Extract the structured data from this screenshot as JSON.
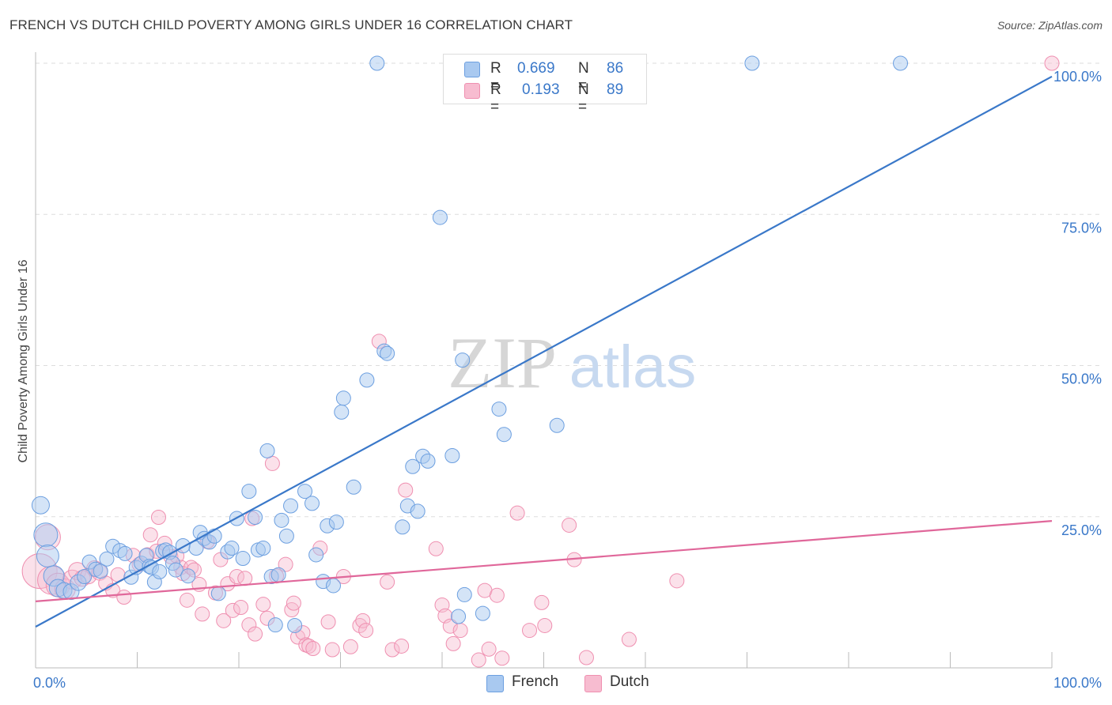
{
  "header": {
    "title": "FRENCH VS DUTCH CHILD POVERTY AMONG GIRLS UNDER 16 CORRELATION CHART",
    "source": "Source: ZipAtlas.com"
  },
  "watermark": {
    "zip": "ZIP",
    "atlas": "atlas"
  },
  "legend": {
    "french": {
      "r_key": "R =",
      "r_value": "0.669",
      "n_key": "N =",
      "n_value": "86"
    },
    "dutch": {
      "r_key": "R =",
      "r_value": "0.193",
      "n_key": "N =",
      "n_value": "89"
    }
  },
  "bottom_legend": {
    "french": "French",
    "dutch": "Dutch"
  },
  "colors": {
    "french_fill": "#a9c9f0",
    "french_stroke": "#6c9fe0",
    "french_line": "#3a78c9",
    "dutch_fill": "#f7bcd0",
    "dutch_stroke": "#ef8fb0",
    "dutch_line": "#e0679a",
    "tick_text": "#3a78c9",
    "grid": "#dddddd"
  },
  "chart_data": {
    "type": "scatter",
    "title": "FRENCH VS DUTCH CHILD POVERTY AMONG GIRLS UNDER 16 CORRELATION CHART",
    "xlabel": "",
    "ylabel": "Child Poverty Among Girls Under 16",
    "xlim": [
      0,
      100
    ],
    "ylim": [
      0,
      100
    ],
    "x_tick_labels": [
      "0.0%",
      "100.0%"
    ],
    "y_ticks": [
      25,
      50,
      75,
      100
    ],
    "y_tick_labels": [
      "25.0%",
      "50.0%",
      "75.0%",
      "100.0%"
    ],
    "grid": true,
    "legend_position": "top-center",
    "series": [
      {
        "name": "French",
        "r": 0.669,
        "n": 86,
        "trend": {
          "x": [
            0,
            100
          ],
          "y": [
            6.8,
            97.8
          ]
        },
        "points": [
          {
            "x": 0.5,
            "y": 26.9,
            "s": 11
          },
          {
            "x": 1.0,
            "y": 22.0,
            "s": 15
          },
          {
            "x": 1.2,
            "y": 18.5,
            "s": 14
          },
          {
            "x": 1.8,
            "y": 15.2,
            "s": 13
          },
          {
            "x": 2.2,
            "y": 13.2,
            "s": 11
          },
          {
            "x": 2.8,
            "y": 12.8,
            "s": 10
          },
          {
            "x": 3.5,
            "y": 12.6,
            "s": 10
          },
          {
            "x": 4.2,
            "y": 14.1,
            "s": 10
          },
          {
            "x": 4.8,
            "y": 15.1,
            "s": 9
          },
          {
            "x": 5.3,
            "y": 17.5,
            "s": 9
          },
          {
            "x": 5.9,
            "y": 16.3,
            "s": 9
          },
          {
            "x": 6.4,
            "y": 16.0,
            "s": 9
          },
          {
            "x": 7.0,
            "y": 18.0,
            "s": 9
          },
          {
            "x": 7.6,
            "y": 20.1,
            "s": 9
          },
          {
            "x": 8.3,
            "y": 19.4,
            "s": 9
          },
          {
            "x": 8.8,
            "y": 18.9,
            "s": 9
          },
          {
            "x": 9.4,
            "y": 15.0,
            "s": 9
          },
          {
            "x": 9.9,
            "y": 16.6,
            "s": 9
          },
          {
            "x": 10.4,
            "y": 17.3,
            "s": 9
          },
          {
            "x": 10.9,
            "y": 18.6,
            "s": 9
          },
          {
            "x": 11.2,
            "y": 16.8,
            "s": 9
          },
          {
            "x": 11.4,
            "y": 16.6,
            "s": 9
          },
          {
            "x": 11.7,
            "y": 14.2,
            "s": 9
          },
          {
            "x": 12.2,
            "y": 15.9,
            "s": 9
          },
          {
            "x": 12.5,
            "y": 19.3,
            "s": 9
          },
          {
            "x": 12.8,
            "y": 19.5,
            "s": 9
          },
          {
            "x": 13.2,
            "y": 19.1,
            "s": 9
          },
          {
            "x": 13.5,
            "y": 17.3,
            "s": 9
          },
          {
            "x": 13.8,
            "y": 16.2,
            "s": 9
          },
          {
            "x": 14.5,
            "y": 20.2,
            "s": 9
          },
          {
            "x": 15.0,
            "y": 15.2,
            "s": 9
          },
          {
            "x": 15.8,
            "y": 19.8,
            "s": 9
          },
          {
            "x": 16.2,
            "y": 22.4,
            "s": 9
          },
          {
            "x": 16.6,
            "y": 21.4,
            "s": 9
          },
          {
            "x": 17.1,
            "y": 20.8,
            "s": 9
          },
          {
            "x": 17.6,
            "y": 21.8,
            "s": 9
          },
          {
            "x": 18.0,
            "y": 12.3,
            "s": 9
          },
          {
            "x": 18.9,
            "y": 19.2,
            "s": 9
          },
          {
            "x": 19.3,
            "y": 19.8,
            "s": 9
          },
          {
            "x": 19.8,
            "y": 24.7,
            "s": 9
          },
          {
            "x": 20.4,
            "y": 18.1,
            "s": 9
          },
          {
            "x": 21.0,
            "y": 29.2,
            "s": 9
          },
          {
            "x": 21.6,
            "y": 24.9,
            "s": 9
          },
          {
            "x": 21.9,
            "y": 19.5,
            "s": 9
          },
          {
            "x": 22.4,
            "y": 19.8,
            "s": 9
          },
          {
            "x": 22.8,
            "y": 35.9,
            "s": 9
          },
          {
            "x": 23.2,
            "y": 15.1,
            "s": 9
          },
          {
            "x": 23.6,
            "y": 7.1,
            "s": 9
          },
          {
            "x": 23.9,
            "y": 15.4,
            "s": 9
          },
          {
            "x": 24.2,
            "y": 24.4,
            "s": 9
          },
          {
            "x": 24.7,
            "y": 21.8,
            "s": 9
          },
          {
            "x": 25.1,
            "y": 26.8,
            "s": 9
          },
          {
            "x": 25.5,
            "y": 7.0,
            "s": 9
          },
          {
            "x": 26.5,
            "y": 29.2,
            "s": 9
          },
          {
            "x": 27.2,
            "y": 27.2,
            "s": 9
          },
          {
            "x": 27.6,
            "y": 18.7,
            "s": 9
          },
          {
            "x": 28.3,
            "y": 14.3,
            "s": 9
          },
          {
            "x": 28.7,
            "y": 23.5,
            "s": 9
          },
          {
            "x": 29.3,
            "y": 13.6,
            "s": 9
          },
          {
            "x": 29.6,
            "y": 24.1,
            "s": 9
          },
          {
            "x": 30.1,
            "y": 42.3,
            "s": 9
          },
          {
            "x": 30.3,
            "y": 44.6,
            "s": 9
          },
          {
            "x": 31.3,
            "y": 29.9,
            "s": 9
          },
          {
            "x": 32.6,
            "y": 47.6,
            "s": 9
          },
          {
            "x": 33.6,
            "y": 100.0,
            "s": 9
          },
          {
            "x": 34.3,
            "y": 52.4,
            "s": 9
          },
          {
            "x": 34.6,
            "y": 52.0,
            "s": 9
          },
          {
            "x": 36.1,
            "y": 23.3,
            "s": 9
          },
          {
            "x": 36.6,
            "y": 26.8,
            "s": 9
          },
          {
            "x": 37.1,
            "y": 33.3,
            "s": 9
          },
          {
            "x": 37.6,
            "y": 25.9,
            "s": 9
          },
          {
            "x": 38.1,
            "y": 35.0,
            "s": 9
          },
          {
            "x": 38.6,
            "y": 34.2,
            "s": 9
          },
          {
            "x": 39.8,
            "y": 74.5,
            "s": 9
          },
          {
            "x": 41.0,
            "y": 35.1,
            "s": 9
          },
          {
            "x": 42.0,
            "y": 50.9,
            "s": 9
          },
          {
            "x": 42.2,
            "y": 12.1,
            "s": 9
          },
          {
            "x": 41.6,
            "y": 8.5,
            "s": 9
          },
          {
            "x": 43.5,
            "y": 100.0,
            "s": 9
          },
          {
            "x": 43.9,
            "y": 100.0,
            "s": 9
          },
          {
            "x": 44.0,
            "y": 9.0,
            "s": 9
          },
          {
            "x": 45.6,
            "y": 42.8,
            "s": 9
          },
          {
            "x": 46.1,
            "y": 38.6,
            "s": 9
          },
          {
            "x": 51.3,
            "y": 40.1,
            "s": 9
          },
          {
            "x": 70.5,
            "y": 100.0,
            "s": 9
          },
          {
            "x": 85.1,
            "y": 100.0,
            "s": 9
          }
        ]
      },
      {
        "name": "Dutch",
        "r": 0.193,
        "n": 89,
        "trend": {
          "x": [
            0,
            100
          ],
          "y": [
            11.0,
            24.3
          ]
        },
        "points": [
          {
            "x": 0.4,
            "y": 16.0,
            "s": 22
          },
          {
            "x": 1.2,
            "y": 21.6,
            "s": 16
          },
          {
            "x": 1.6,
            "y": 14.5,
            "s": 18
          },
          {
            "x": 2.2,
            "y": 13.7,
            "s": 15
          },
          {
            "x": 2.9,
            "y": 13.0,
            "s": 13
          },
          {
            "x": 3.6,
            "y": 14.6,
            "s": 12
          },
          {
            "x": 4.1,
            "y": 16.0,
            "s": 11
          },
          {
            "x": 4.6,
            "y": 14.8,
            "s": 10
          },
          {
            "x": 5.2,
            "y": 15.2,
            "s": 10
          },
          {
            "x": 5.8,
            "y": 16.4,
            "s": 10
          },
          {
            "x": 6.3,
            "y": 15.8,
            "s": 10
          },
          {
            "x": 6.9,
            "y": 14.0,
            "s": 9
          },
          {
            "x": 7.6,
            "y": 12.8,
            "s": 9
          },
          {
            "x": 8.1,
            "y": 15.4,
            "s": 9
          },
          {
            "x": 8.7,
            "y": 11.7,
            "s": 9
          },
          {
            "x": 9.6,
            "y": 18.6,
            "s": 9
          },
          {
            "x": 10.2,
            "y": 17.1,
            "s": 9
          },
          {
            "x": 11.0,
            "y": 18.7,
            "s": 9
          },
          {
            "x": 11.3,
            "y": 22.0,
            "s": 9
          },
          {
            "x": 11.9,
            "y": 19.3,
            "s": 9
          },
          {
            "x": 12.1,
            "y": 24.9,
            "s": 9
          },
          {
            "x": 12.7,
            "y": 20.6,
            "s": 9
          },
          {
            "x": 13.3,
            "y": 18.4,
            "s": 9
          },
          {
            "x": 13.9,
            "y": 18.5,
            "s": 9
          },
          {
            "x": 14.3,
            "y": 16.6,
            "s": 9
          },
          {
            "x": 14.5,
            "y": 15.6,
            "s": 9
          },
          {
            "x": 14.9,
            "y": 11.2,
            "s": 9
          },
          {
            "x": 15.3,
            "y": 16.6,
            "s": 9
          },
          {
            "x": 15.6,
            "y": 16.2,
            "s": 9
          },
          {
            "x": 16.1,
            "y": 13.8,
            "s": 9
          },
          {
            "x": 16.4,
            "y": 8.9,
            "s": 9
          },
          {
            "x": 16.9,
            "y": 20.9,
            "s": 9
          },
          {
            "x": 17.7,
            "y": 12.4,
            "s": 9
          },
          {
            "x": 18.2,
            "y": 17.9,
            "s": 9
          },
          {
            "x": 18.5,
            "y": 7.8,
            "s": 9
          },
          {
            "x": 18.9,
            "y": 13.9,
            "s": 9
          },
          {
            "x": 19.4,
            "y": 9.5,
            "s": 9
          },
          {
            "x": 19.8,
            "y": 15.1,
            "s": 9
          },
          {
            "x": 20.2,
            "y": 10.0,
            "s": 9
          },
          {
            "x": 20.6,
            "y": 14.8,
            "s": 9
          },
          {
            "x": 21.0,
            "y": 7.1,
            "s": 9
          },
          {
            "x": 21.3,
            "y": 24.7,
            "s": 9
          },
          {
            "x": 21.6,
            "y": 5.6,
            "s": 9
          },
          {
            "x": 22.4,
            "y": 10.5,
            "s": 9
          },
          {
            "x": 22.8,
            "y": 8.2,
            "s": 9
          },
          {
            "x": 23.3,
            "y": 33.8,
            "s": 9
          },
          {
            "x": 23.7,
            "y": 15.2,
            "s": 9
          },
          {
            "x": 24.6,
            "y": 17.1,
            "s": 9
          },
          {
            "x": 25.2,
            "y": 9.6,
            "s": 9
          },
          {
            "x": 25.4,
            "y": 10.7,
            "s": 9
          },
          {
            "x": 25.8,
            "y": 5.1,
            "s": 9
          },
          {
            "x": 26.3,
            "y": 5.8,
            "s": 9
          },
          {
            "x": 26.6,
            "y": 3.8,
            "s": 9
          },
          {
            "x": 26.9,
            "y": 3.6,
            "s": 9
          },
          {
            "x": 27.3,
            "y": 3.2,
            "s": 9
          },
          {
            "x": 28.0,
            "y": 19.8,
            "s": 9
          },
          {
            "x": 28.8,
            "y": 7.6,
            "s": 9
          },
          {
            "x": 29.2,
            "y": 3.0,
            "s": 9
          },
          {
            "x": 30.3,
            "y": 15.1,
            "s": 9
          },
          {
            "x": 31.0,
            "y": 3.5,
            "s": 9
          },
          {
            "x": 31.9,
            "y": 7.0,
            "s": 9
          },
          {
            "x": 32.2,
            "y": 7.8,
            "s": 9
          },
          {
            "x": 32.5,
            "y": 6.2,
            "s": 9
          },
          {
            "x": 33.8,
            "y": 54.0,
            "s": 9
          },
          {
            "x": 34.6,
            "y": 14.2,
            "s": 9
          },
          {
            "x": 35.1,
            "y": 3.0,
            "s": 9
          },
          {
            "x": 36.0,
            "y": 3.6,
            "s": 9
          },
          {
            "x": 36.4,
            "y": 29.4,
            "s": 9
          },
          {
            "x": 39.4,
            "y": 19.7,
            "s": 9
          },
          {
            "x": 40.0,
            "y": 10.4,
            "s": 9
          },
          {
            "x": 40.3,
            "y": 8.6,
            "s": 9
          },
          {
            "x": 40.8,
            "y": 6.9,
            "s": 9
          },
          {
            "x": 41.1,
            "y": 4.0,
            "s": 9
          },
          {
            "x": 41.8,
            "y": 6.2,
            "s": 9
          },
          {
            "x": 43.6,
            "y": 1.3,
            "s": 9
          },
          {
            "x": 44.2,
            "y": 12.8,
            "s": 9
          },
          {
            "x": 44.6,
            "y": 3.1,
            "s": 9
          },
          {
            "x": 45.4,
            "y": 12.0,
            "s": 9
          },
          {
            "x": 45.9,
            "y": 1.6,
            "s": 9
          },
          {
            "x": 47.4,
            "y": 25.6,
            "s": 9
          },
          {
            "x": 48.6,
            "y": 6.2,
            "s": 9
          },
          {
            "x": 49.8,
            "y": 10.8,
            "s": 9
          },
          {
            "x": 50.1,
            "y": 7.0,
            "s": 9
          },
          {
            "x": 52.5,
            "y": 23.6,
            "s": 9
          },
          {
            "x": 53.0,
            "y": 17.9,
            "s": 9
          },
          {
            "x": 54.2,
            "y": 1.7,
            "s": 9
          },
          {
            "x": 58.4,
            "y": 4.7,
            "s": 9
          },
          {
            "x": 63.1,
            "y": 14.4,
            "s": 9
          },
          {
            "x": 100.0,
            "y": 100.0,
            "s": 9
          }
        ]
      }
    ]
  }
}
